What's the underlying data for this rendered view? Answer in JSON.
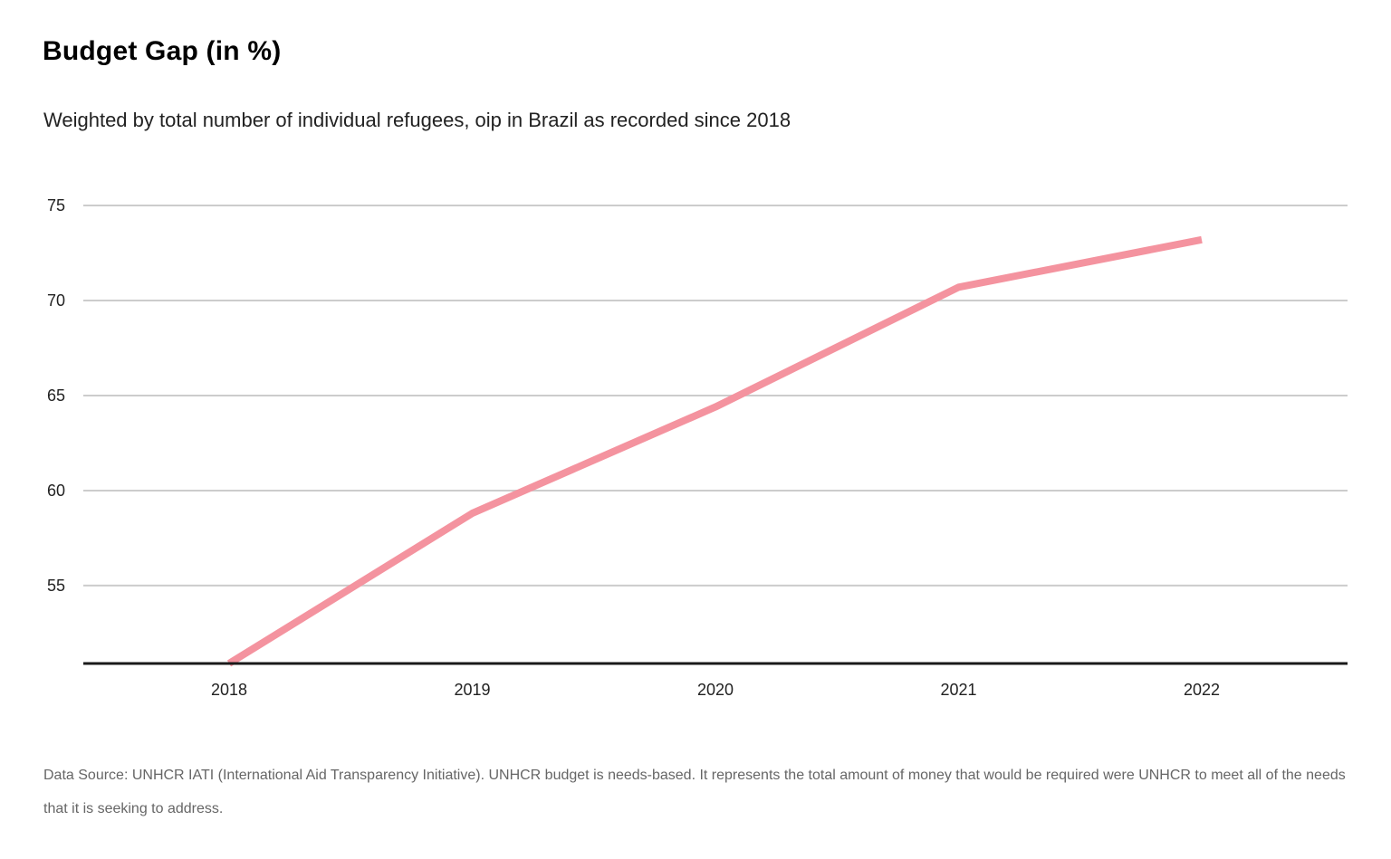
{
  "title": "Budget Gap (in %)",
  "subtitle": "Weighted by total number of individual refugees, oip in Brazil as recorded since 2018",
  "source_note": "Data Source: UNHCR IATI (International Aid Transparency Initiative). UNHCR budget is needs-based. It represents the total amount of money that would be required were UNHCR to meet all of the needs that it is seeking to address.",
  "chart_data": {
    "type": "line",
    "title": "Budget Gap (in %)",
    "subtitle": "Weighted by total number of individual refugees, oip in Brazil as recorded since 2018",
    "x": [
      "2018",
      "2019",
      "2020",
      "2021",
      "2022"
    ],
    "series": [
      {
        "values": [
          50.9,
          58.8,
          64.4,
          70.7,
          73.2
        ],
        "color": "#f4939f"
      }
    ],
    "y_ticks": [
      55,
      60,
      65,
      70,
      75
    ],
    "ylim": [
      50.9,
      76
    ],
    "xlabel": "",
    "ylabel": "",
    "grid": true,
    "legend": "none",
    "colors": {
      "line": "#f4939f",
      "grid": "#cccccc",
      "baseline": "#1a1a1a"
    }
  }
}
